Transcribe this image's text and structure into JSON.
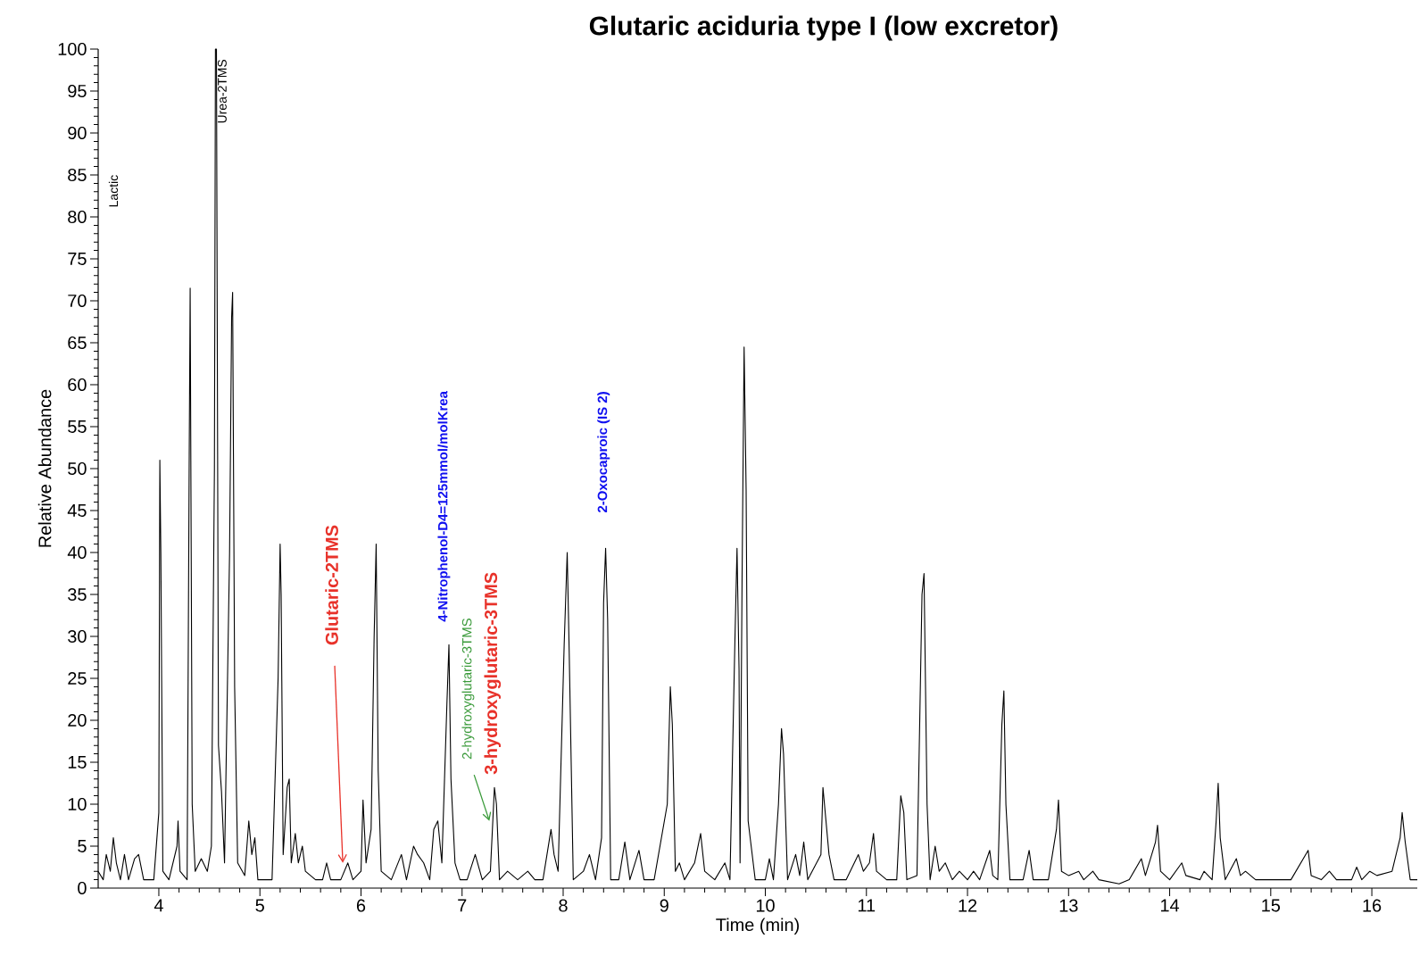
{
  "chart_data": {
    "type": "line",
    "title": "Glutaric aciduria type I (low excretor)",
    "xlabel": "Time (min)",
    "ylabel": "Relative Abundance",
    "color": "#000000",
    "xlim": [
      3.4,
      16.45
    ],
    "ylim": [
      0,
      100
    ],
    "xticks": [
      4,
      5,
      6,
      7,
      8,
      9,
      10,
      11,
      12,
      13,
      14,
      15,
      16
    ],
    "yticks": [
      0,
      5,
      10,
      15,
      20,
      25,
      30,
      35,
      40,
      45,
      50,
      55,
      60,
      65,
      70,
      75,
      80,
      85,
      90,
      95,
      100
    ],
    "x": [
      3.4,
      3.45,
      3.48,
      3.52,
      3.55,
      3.58,
      3.62,
      3.66,
      3.7,
      3.76,
      3.8,
      3.85,
      3.95,
      4.0,
      4.01,
      4.02,
      4.04,
      4.1,
      4.18,
      4.19,
      4.21,
      4.28,
      4.3,
      4.31,
      4.33,
      4.36,
      4.42,
      4.48,
      4.52,
      4.55,
      4.56,
      4.57,
      4.59,
      4.62,
      4.65,
      4.7,
      4.72,
      4.73,
      4.75,
      4.78,
      4.85,
      4.89,
      4.92,
      4.95,
      4.98,
      5.05,
      5.12,
      5.18,
      5.2,
      5.21,
      5.23,
      5.27,
      5.29,
      5.31,
      5.35,
      5.38,
      5.42,
      5.45,
      5.55,
      5.62,
      5.66,
      5.7,
      5.8,
      5.87,
      5.92,
      6.0,
      6.02,
      6.05,
      6.1,
      6.13,
      6.15,
      6.17,
      6.2,
      6.3,
      6.4,
      6.45,
      6.52,
      6.56,
      6.62,
      6.68,
      6.72,
      6.76,
      6.8,
      6.85,
      6.87,
      6.89,
      6.93,
      6.98,
      7.05,
      7.13,
      7.2,
      7.28,
      7.32,
      7.34,
      7.37,
      7.45,
      7.55,
      7.65,
      7.72,
      7.8,
      7.88,
      7.91,
      7.95,
      8.01,
      8.04,
      8.06,
      8.1,
      8.2,
      8.26,
      8.32,
      8.38,
      8.4,
      8.42,
      8.44,
      8.47,
      8.55,
      8.61,
      8.66,
      8.75,
      8.8,
      8.9,
      9.03,
      9.06,
      9.08,
      9.11,
      9.15,
      9.2,
      9.3,
      9.36,
      9.4,
      9.5,
      9.6,
      9.65,
      9.7,
      9.72,
      9.74,
      9.75,
      9.77,
      9.79,
      9.81,
      9.83,
      9.86,
      9.9,
      10.0,
      10.04,
      10.08,
      10.13,
      10.16,
      10.18,
      10.22,
      10.3,
      10.34,
      10.38,
      10.42,
      10.55,
      10.57,
      10.6,
      10.63,
      10.68,
      10.8,
      10.92,
      10.97,
      11.03,
      11.07,
      11.1,
      11.2,
      11.3,
      11.34,
      11.37,
      11.4,
      11.5,
      11.55,
      11.57,
      11.6,
      11.63,
      11.68,
      11.72,
      11.78,
      11.85,
      11.92,
      12.0,
      12.06,
      12.12,
      12.22,
      12.25,
      12.3,
      12.34,
      12.36,
      12.38,
      12.42,
      12.55,
      12.61,
      12.65,
      12.8,
      12.88,
      12.9,
      12.93,
      13.0,
      13.1,
      13.15,
      13.24,
      13.3,
      13.5,
      13.6,
      13.72,
      13.76,
      13.86,
      13.88,
      13.91,
      14.0,
      14.12,
      14.16,
      14.3,
      14.34,
      14.42,
      14.46,
      14.48,
      14.5,
      14.55,
      14.66,
      14.7,
      14.75,
      14.85,
      15.0,
      15.2,
      15.37,
      15.4,
      15.5,
      15.58,
      15.65,
      15.8,
      15.85,
      15.9,
      15.98,
      16.05,
      16.2,
      16.28,
      16.3,
      16.33,
      16.38,
      16.45
    ],
    "values": [
      2,
      1,
      4,
      2,
      6,
      3,
      1,
      4,
      1,
      3.5,
      4,
      1,
      1,
      9,
      51,
      40,
      2,
      1,
      5,
      8,
      2,
      1,
      50,
      71.5,
      10,
      2,
      3.5,
      2,
      5,
      50,
      100,
      100,
      17,
      11.5,
      3,
      40,
      68,
      71,
      24,
      3,
      1.5,
      8,
      4,
      6,
      1,
      1,
      1,
      25,
      41,
      35,
      4,
      12,
      13,
      3,
      6.5,
      3,
      5,
      2,
      1,
      1,
      3,
      1,
      1,
      3,
      1,
      2,
      10.5,
      3,
      7,
      30,
      41,
      14,
      2,
      1,
      4,
      1,
      5,
      4,
      3,
      1,
      7,
      8,
      3,
      22,
      29,
      13,
      3,
      1,
      1,
      4,
      1,
      2,
      12,
      10,
      1,
      2,
      1,
      2,
      1,
      1,
      7,
      4,
      2,
      29,
      40,
      28,
      1,
      2,
      4,
      1,
      6,
      34,
      40.5,
      32,
      1,
      1,
      5.5,
      1,
      4.5,
      1,
      1,
      10,
      24,
      19.5,
      2,
      3,
      1,
      3,
      6.5,
      2,
      1,
      3,
      1,
      30,
      40.5,
      26,
      3,
      37,
      64.5,
      47.5,
      8,
      5,
      1,
      1,
      3.5,
      1,
      10,
      19,
      16,
      1,
      4,
      1.5,
      5.5,
      1,
      4,
      12,
      8,
      4,
      1,
      1,
      4,
      2,
      3,
      6.5,
      2,
      1,
      1,
      11,
      9,
      1,
      1.5,
      35,
      37.5,
      10,
      1,
      5,
      2,
      3,
      1,
      2,
      1,
      2,
      1,
      4.5,
      1.5,
      1,
      19.5,
      23.5,
      10,
      1,
      1,
      4.5,
      1,
      1,
      7,
      10.5,
      2,
      1.5,
      2,
      1,
      2,
      1,
      0.5,
      1,
      3.5,
      1.5,
      5.5,
      7.5,
      2,
      1,
      3,
      1.5,
      1,
      2,
      1,
      8,
      12.5,
      6,
      1,
      3.5,
      1.5,
      2,
      1,
      1,
      1,
      4.5,
      1.5,
      1,
      2,
      1,
      1,
      2.5,
      1,
      2,
      1.5,
      2,
      6,
      9,
      5.5,
      1,
      1
    ],
    "annotations": [
      "Lactic",
      "Urea-2TMS",
      {
        "text": "Glutaric-2TMS",
        "x": 5.82,
        "y": 3
      },
      "4-Nitrophenol-D4=125mmol/molKrea",
      {
        "text": "2-hydroxyglutaric-3TMS",
        "x": 7.27,
        "y": 8
      },
      "3-hydroxyglutaric-3TMS",
      "2-Oxocaproic (IS 2)"
    ]
  }
}
